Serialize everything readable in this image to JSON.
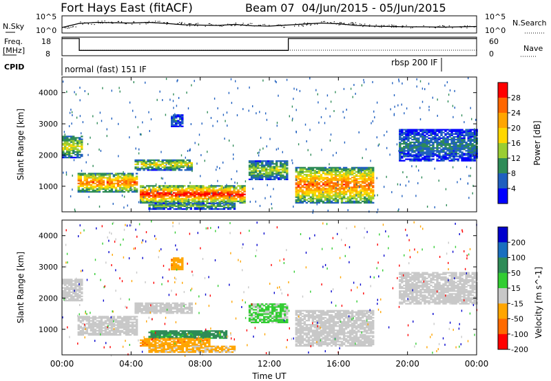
{
  "chart_data": [
    {
      "type": "line",
      "name": "sky-noise-panel",
      "title": "Fort Hays East (fitACF)",
      "beam_label": "Beam 07",
      "date_range": "04/Jun/2015 - 05/Jun/2015",
      "left_label": "N.Sky",
      "right_label": "N.Search",
      "left_ticks": [
        "10^5",
        "10^0"
      ],
      "right_ticks": [
        "10^5",
        "10^0"
      ],
      "y_scale": "log",
      "series": [
        {
          "name": "N.Sky",
          "x_hours": [
            0,
            1,
            2,
            3,
            4,
            5,
            6,
            7,
            8,
            9,
            10,
            11,
            12,
            13,
            14,
            15,
            16,
            17,
            18,
            19,
            20,
            21,
            22,
            23,
            24
          ],
          "log10_values": [
            0.8,
            2.0,
            2.3,
            2.2,
            2.1,
            2.3,
            2.0,
            1.6,
            1.5,
            1.4,
            1.7,
            1.3,
            1.2,
            1.5,
            1.8,
            2.1,
            1.9,
            1.4,
            1.2,
            1.1,
            1.0,
            1.0,
            0.9,
            1.0,
            1.1
          ]
        }
      ]
    },
    {
      "type": "line",
      "name": "freq-nave-panel",
      "left_label_lines": [
        "Freq.",
        "[MHz]"
      ],
      "right_label": "Nave",
      "left_ticks": [
        "18",
        "8"
      ],
      "right_ticks": [
        "60",
        "0"
      ],
      "series": [
        {
          "name": "Freq.",
          "x_hours": [
            0,
            1.0,
            1.0,
            13.1,
            13.1,
            24
          ],
          "values_mhz": [
            18,
            18,
            10.5,
            10.5,
            18,
            18
          ]
        },
        {
          "name": "Nave",
          "x_hours": [
            0,
            1,
            1,
            24
          ],
          "values": [
            10,
            10,
            10,
            10
          ]
        }
      ]
    },
    {
      "type": "table",
      "name": "cpid-panel",
      "label": "CPID",
      "segments": [
        {
          "label": "normal (fast) 151 IF",
          "start_hour": 0,
          "end_hour": 21.4
        },
        {
          "label": "rbsp 200 IF",
          "start_hour": 21.4,
          "end_hour": 24
        }
      ]
    },
    {
      "type": "heatmap",
      "name": "power-panel",
      "ylabel": "Slant Range [km]",
      "yticks": [
        "1000",
        "2000",
        "3000",
        "4000"
      ],
      "ylim": [
        180,
        4500
      ],
      "xlim_hours": [
        0,
        24
      ],
      "colorbar_label": "Power [dB]",
      "colorbar_ticks": [
        "28",
        "24",
        "20",
        "16",
        "12",
        "8",
        "4"
      ],
      "colorbar_colors": [
        "#ff0000",
        "#ff6600",
        "#ffa500",
        "#ffd700",
        "#9acd32",
        "#2e8b57",
        "#1f5fbf",
        "#0000ff"
      ],
      "echo_regions": [
        {
          "t0": 0.0,
          "t1": 1.2,
          "r0": 1900,
          "r1": 2600,
          "db": 16
        },
        {
          "t0": 0.9,
          "t1": 4.3,
          "r0": 800,
          "r1": 1400,
          "db": 24
        },
        {
          "t0": 4.2,
          "t1": 7.5,
          "r0": 1500,
          "r1": 1850,
          "db": 16
        },
        {
          "t0": 4.5,
          "t1": 10.5,
          "r0": 450,
          "r1": 1000,
          "db": 28
        },
        {
          "t0": 5.0,
          "t1": 10.0,
          "r0": 250,
          "r1": 450,
          "db": 12
        },
        {
          "t0": 10.8,
          "t1": 13.0,
          "r0": 1200,
          "r1": 1800,
          "db": 14
        },
        {
          "t0": 13.5,
          "t1": 18.0,
          "r0": 450,
          "r1": 1600,
          "db": 24
        },
        {
          "t0": 19.5,
          "t1": 24.0,
          "r0": 1800,
          "r1": 2800,
          "db": 8
        },
        {
          "t0": 6.3,
          "t1": 7.0,
          "r0": 2900,
          "r1": 3300,
          "db": 6
        }
      ]
    },
    {
      "type": "heatmap",
      "name": "velocity-panel",
      "ylabel": "Slant Range [km]",
      "yticks": [
        "1000",
        "2000",
        "3000",
        "4000"
      ],
      "ylim": [
        180,
        4500
      ],
      "xlabel": "Time UT",
      "xticks": [
        "00:00",
        "04:00",
        "08:00",
        "12:00",
        "16:00",
        "20:00",
        "00:00"
      ],
      "xtick_hours": [
        0,
        4,
        8,
        12,
        16,
        20,
        24
      ],
      "colorbar_label": "Velocity [m s^-1]",
      "colorbar_ticks": [
        "200",
        "100",
        "50",
        "15",
        "-15",
        "-50",
        "-100",
        "-200"
      ],
      "colorbar_colors": [
        "#0000cd",
        "#1a6fbf",
        "#2e8b57",
        "#32cd32",
        "#c8c8c8",
        "#ffa500",
        "#ff6a00",
        "#ff0000"
      ],
      "echo_regions": [
        {
          "t0": 0.0,
          "t1": 1.2,
          "r0": 1900,
          "r1": 2600,
          "v": 0
        },
        {
          "t0": 0.9,
          "t1": 4.3,
          "r0": 800,
          "r1": 1400,
          "v": 0
        },
        {
          "t0": 4.2,
          "t1": 7.5,
          "r0": 1500,
          "r1": 1850,
          "v": 0
        },
        {
          "t0": 5.0,
          "t1": 9.5,
          "r0": 700,
          "r1": 950,
          "v": 60
        },
        {
          "t0": 4.5,
          "t1": 8.5,
          "r0": 450,
          "r1": 700,
          "v": -40
        },
        {
          "t0": 5.0,
          "t1": 10.0,
          "r0": 250,
          "r1": 450,
          "v": -20
        },
        {
          "t0": 10.8,
          "t1": 13.0,
          "r0": 1200,
          "r1": 1800,
          "v": 20
        },
        {
          "t0": 13.5,
          "t1": 18.0,
          "r0": 450,
          "r1": 1600,
          "v": 0
        },
        {
          "t0": 19.5,
          "t1": 24.0,
          "r0": 1800,
          "r1": 2800,
          "v": 0
        },
        {
          "t0": 6.3,
          "t1": 7.0,
          "r0": 2900,
          "r1": 3300,
          "v": -40
        }
      ]
    }
  ]
}
